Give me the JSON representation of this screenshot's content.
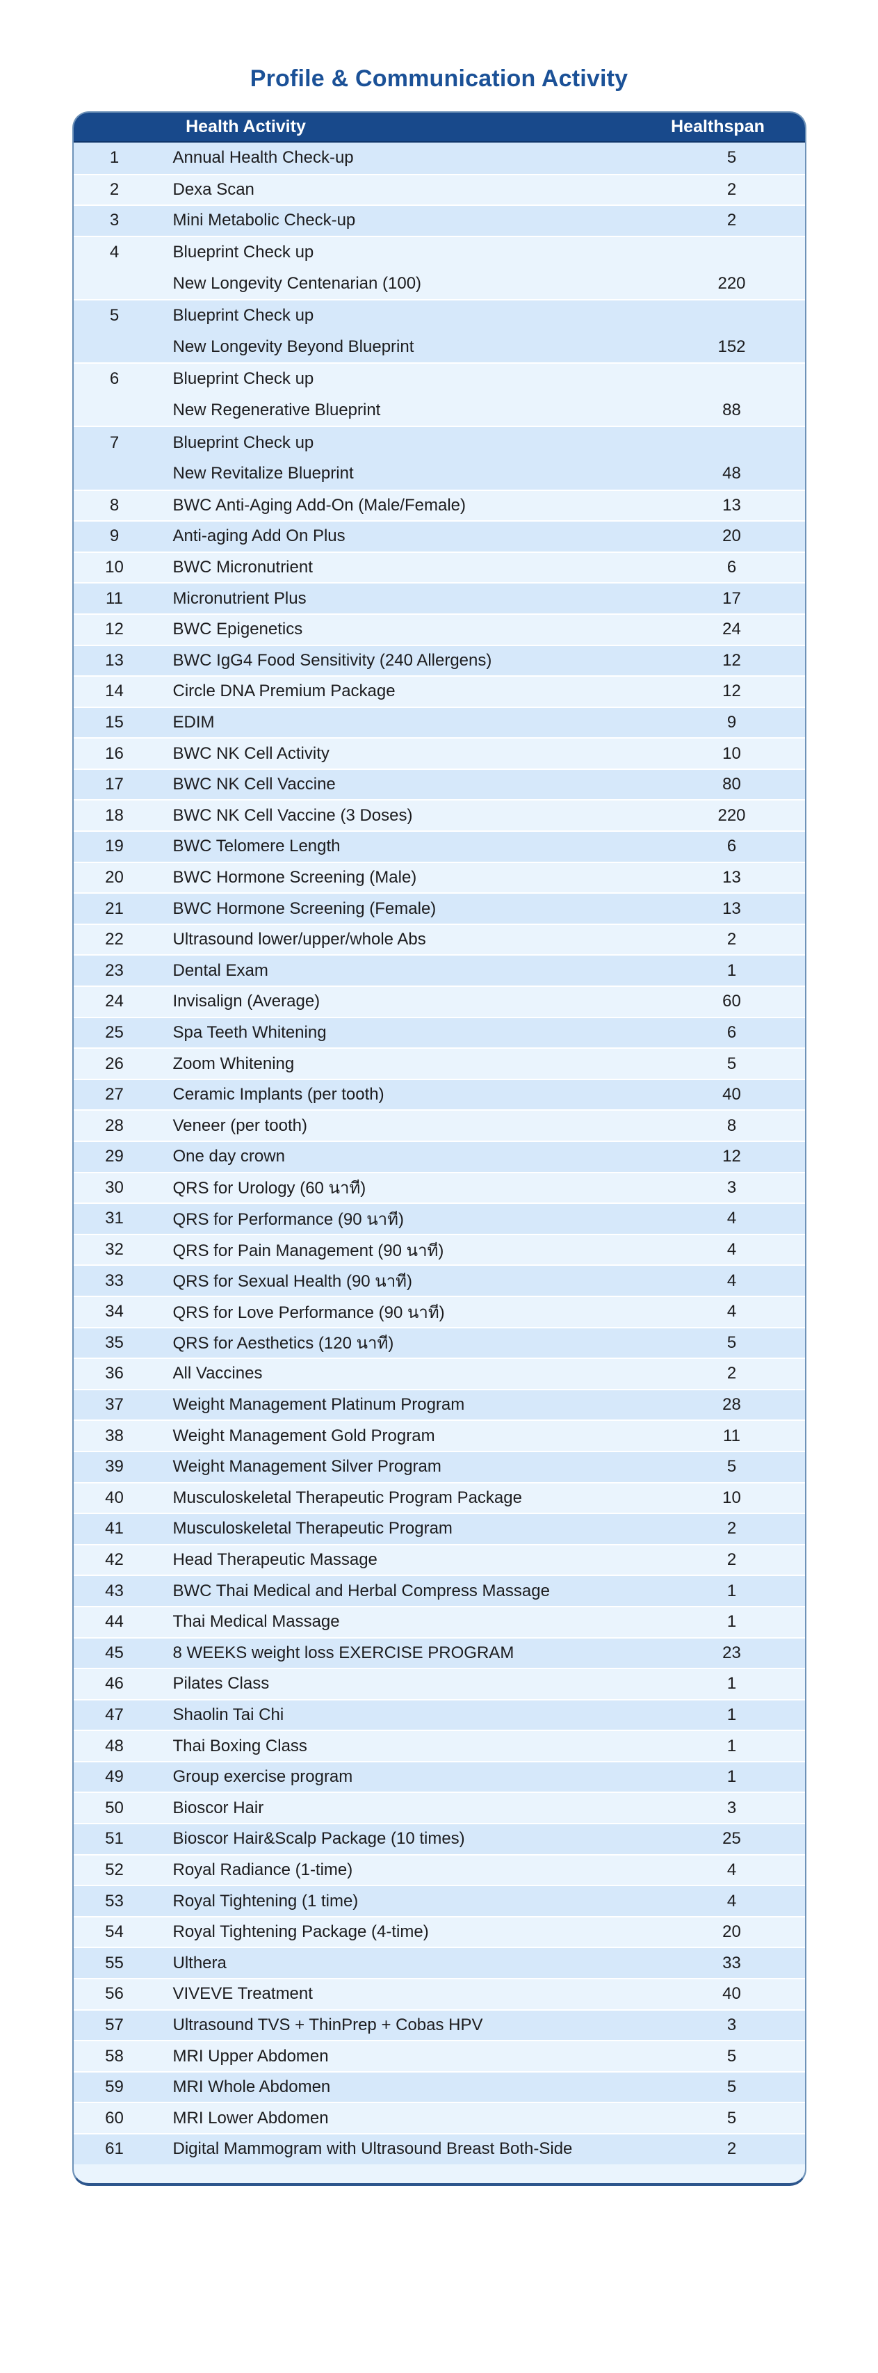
{
  "title": "Profile & Communication Activity",
  "colors": {
    "title_text": "#1b5197",
    "header_background": "#18498b",
    "header_text": "#ffffff",
    "row_shade_dark": "#d6e8fa",
    "row_shade_light": "#eaf4fd",
    "body_text": "#1c1c1e"
  },
  "table": {
    "columns": {
      "activity": "Health Activity",
      "value": "Healthspan"
    },
    "rows": [
      {
        "no": "1",
        "activity": "Annual Health Check-up",
        "value": "5"
      },
      {
        "no": "2",
        "activity": "Dexa Scan",
        "value": "2"
      },
      {
        "no": "3",
        "activity": "Mini Metabolic Check-up",
        "value": "2"
      },
      {
        "no": "4",
        "activity": "Blueprint Check up",
        "sub_activity": "New Longevity Centenarian (100)",
        "value": "220"
      },
      {
        "no": "5",
        "activity": "Blueprint Check up",
        "sub_activity": "New Longevity Beyond Blueprint",
        "value": "152"
      },
      {
        "no": "6",
        "activity": "Blueprint Check up",
        "sub_activity": "New Regenerative Blueprint",
        "value": "88"
      },
      {
        "no": "7",
        "activity": "Blueprint Check up",
        "sub_activity": "New Revitalize Blueprint",
        "value": "48"
      },
      {
        "no": "8",
        "activity": "BWC Anti-Aging Add-On (Male/Female)",
        "value": "13"
      },
      {
        "no": "9",
        "activity": "Anti-aging Add On Plus",
        "value": "20"
      },
      {
        "no": "10",
        "activity": "BWC Micronutrient",
        "value": "6"
      },
      {
        "no": "11",
        "activity": "Micronutrient Plus",
        "value": "17"
      },
      {
        "no": "12",
        "activity": "BWC Epigenetics",
        "value": "24"
      },
      {
        "no": "13",
        "activity": "BWC IgG4 Food Sensitivity (240 Allergens)",
        "value": "12"
      },
      {
        "no": "14",
        "activity": "Circle DNA Premium Package",
        "value": "12"
      },
      {
        "no": "15",
        "activity": "EDIM",
        "value": "9"
      },
      {
        "no": "16",
        "activity": "BWC NK Cell Activity",
        "value": "10"
      },
      {
        "no": "17",
        "activity": "BWC NK Cell Vaccine",
        "value": "80"
      },
      {
        "no": "18",
        "activity": "BWC NK Cell Vaccine (3 Doses)",
        "value": "220"
      },
      {
        "no": "19",
        "activity": "BWC Telomere Length",
        "value": "6"
      },
      {
        "no": "20",
        "activity": "BWC Hormone Screening (Male)",
        "value": "13"
      },
      {
        "no": "21",
        "activity": "BWC Hormone Screening (Female)",
        "value": "13"
      },
      {
        "no": "22",
        "activity": "Ultrasound lower/upper/whole Abs",
        "value": "2"
      },
      {
        "no": "23",
        "activity": "Dental Exam",
        "value": "1"
      },
      {
        "no": "24",
        "activity": "Invisalign (Average)",
        "value": "60"
      },
      {
        "no": "25",
        "activity": "Spa Teeth Whitening",
        "value": "6"
      },
      {
        "no": "26",
        "activity": "Zoom Whitening",
        "value": "5"
      },
      {
        "no": "27",
        "activity": "Ceramic Implants (per tooth)",
        "value": "40"
      },
      {
        "no": "28",
        "activity": "Veneer (per tooth)",
        "value": "8"
      },
      {
        "no": "29",
        "activity": "One day crown",
        "value": "12"
      },
      {
        "no": "30",
        "activity": "QRS for Urology (60 นาที)",
        "value": "3"
      },
      {
        "no": "31",
        "activity": "QRS for Performance (90 นาที)",
        "value": "4"
      },
      {
        "no": "32",
        "activity": "QRS for Pain Management (90 นาที)",
        "value": "4"
      },
      {
        "no": "33",
        "activity": "QRS for Sexual Health (90 นาที)",
        "value": "4"
      },
      {
        "no": "34",
        "activity": "QRS for Love Performance (90 นาที)",
        "value": "4"
      },
      {
        "no": "35",
        "activity": "QRS for Aesthetics (120 นาที)",
        "value": "5"
      },
      {
        "no": "36",
        "activity": "All Vaccines",
        "value": "2"
      },
      {
        "no": "37",
        "activity": "Weight Management Platinum Program",
        "value": "28"
      },
      {
        "no": "38",
        "activity": "Weight Management Gold Program",
        "value": "11"
      },
      {
        "no": "39",
        "activity": "Weight Management Silver Program",
        "value": "5"
      },
      {
        "no": "40",
        "activity": "Musculoskeletal Therapeutic Program Package",
        "value": "10"
      },
      {
        "no": "41",
        "activity": "Musculoskeletal Therapeutic Program",
        "value": "2"
      },
      {
        "no": "42",
        "activity": "Head Therapeutic Massage",
        "value": "2"
      },
      {
        "no": "43",
        "activity": "BWC Thai Medical and Herbal Compress Massage",
        "value": "1"
      },
      {
        "no": "44",
        "activity": "Thai Medical Massage",
        "value": "1"
      },
      {
        "no": "45",
        "activity": "8 WEEKS weight loss EXERCISE PROGRAM",
        "value": "23"
      },
      {
        "no": "46",
        "activity": "Pilates Class",
        "value": "1"
      },
      {
        "no": "47",
        "activity": "Shaolin Tai Chi",
        "value": "1"
      },
      {
        "no": "48",
        "activity": "Thai Boxing Class",
        "value": "1"
      },
      {
        "no": "49",
        "activity": "Group exercise program",
        "value": "1"
      },
      {
        "no": "50",
        "activity": "Bioscor Hair",
        "value": "3"
      },
      {
        "no": "51",
        "activity": "Bioscor Hair&Scalp Package (10 times)",
        "value": "25"
      },
      {
        "no": "52",
        "activity": "Royal Radiance (1-time)",
        "value": "4"
      },
      {
        "no": "53",
        "activity": "Royal Tightening (1 time)",
        "value": "4"
      },
      {
        "no": "54",
        "activity": "Royal Tightening Package  (4-time)",
        "value": "20"
      },
      {
        "no": "55",
        "activity": "Ulthera",
        "value": "33"
      },
      {
        "no": "56",
        "activity": "VIVEVE Treatment",
        "value": "40"
      },
      {
        "no": "57",
        "activity": "Ultrasound TVS + ThinPrep + Cobas HPV",
        "value": "3"
      },
      {
        "no": "58",
        "activity": "MRI Upper Abdomen",
        "value": "5"
      },
      {
        "no": "59",
        "activity": "MRI Whole Abdomen",
        "value": "5"
      },
      {
        "no": "60",
        "activity": "MRI Lower Abdomen",
        "value": "5"
      },
      {
        "no": "61",
        "activity": "Digital Mammogram with Ultrasound Breast Both-Side",
        "value": "2"
      }
    ]
  }
}
